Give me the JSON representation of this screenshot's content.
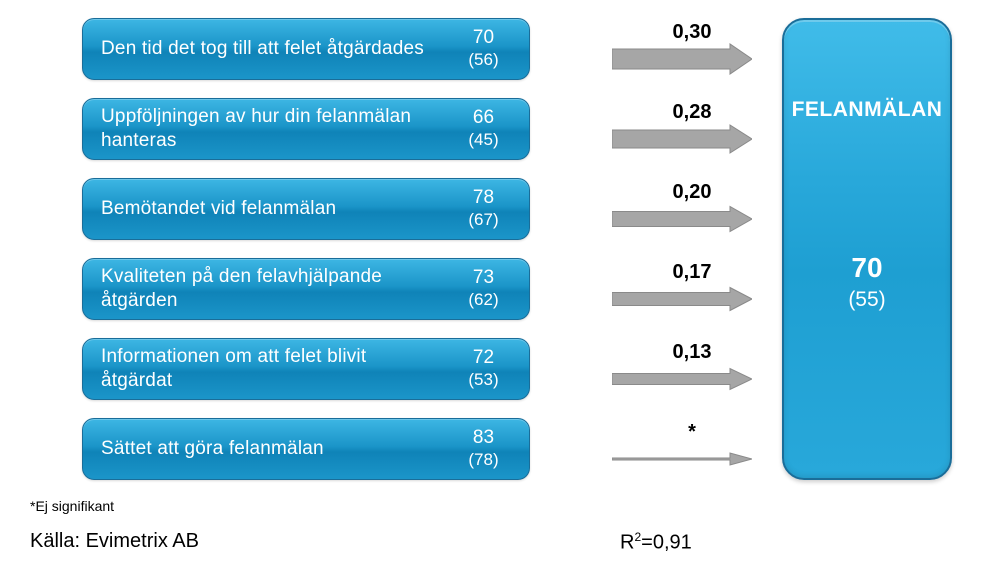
{
  "factors": [
    {
      "label": "Den tid det tog till att felet åtgärdades",
      "score": "70",
      "prev": "(56)",
      "weight": "0,30",
      "arrow_thickness": 20
    },
    {
      "label": "Uppföljningen av hur din felanmälan hanteras",
      "score": "66",
      "prev": "(45)",
      "weight": "0,28",
      "arrow_thickness": 18
    },
    {
      "label": "Bemötandet vid felanmälan",
      "score": "78",
      "prev": "(67)",
      "weight": "0,20",
      "arrow_thickness": 15
    },
    {
      "label": "Kvaliteten på den felavhjälpande åtgärden",
      "score": "73",
      "prev": "(62)",
      "weight": "0,17",
      "arrow_thickness": 13
    },
    {
      "label": "Informationen om att felet blivit åtgärdat",
      "score": "72",
      "prev": "(53)",
      "weight": "0,13",
      "arrow_thickness": 11
    },
    {
      "label": "Sättet att göra felanmälan",
      "score": "83",
      "prev": "(78)",
      "weight": "*",
      "arrow_thickness": 2
    }
  ],
  "result": {
    "title": "FELANMÄLAN",
    "score": "70",
    "prev": "(55)"
  },
  "footnote": "*Ej signifikant",
  "source": "Källa:  Evimetrix AB",
  "rsq_label": "R",
  "rsq_exp": "2",
  "rsq_value": "=0,91",
  "arrow": {
    "width": 140,
    "fill": "#a6a6a6",
    "stroke": "#8a8a8a",
    "head_extra_each_side": 5,
    "head_len": 22,
    "shaft_len": 118
  },
  "colors": {
    "box_border": "#1a6d99",
    "box_text": "#ffffff",
    "label_text": "#000000",
    "background": "#ffffff"
  }
}
